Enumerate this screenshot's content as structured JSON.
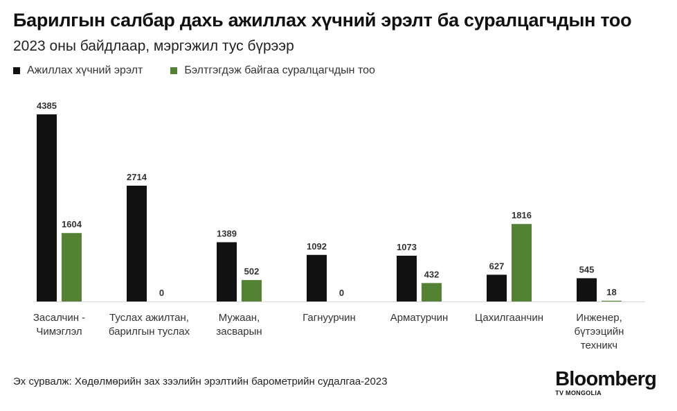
{
  "title": "Барилгын салбар дахь ажиллах хүчний эрэлт ба суралцагчдын тоо",
  "subtitle": "2023 оны байдлаар, мэргэжил тус бүрээр",
  "source": "Эх сурвалж: Хөдөлмөрийн зах зээлийн эрэлтийн барометрийн судалгаа-2023",
  "brand": {
    "name": "Bloomberg",
    "sub": "TV MONGOLIA"
  },
  "colors": {
    "demand": "#111111",
    "students": "#548235",
    "axis": "#d9d9d9"
  },
  "chart_data": {
    "type": "bar",
    "categories": [
      [
        "Засалчин -",
        "Чимэглэл"
      ],
      [
        "Туслах ажилтан,",
        "барилгын туслах"
      ],
      [
        "Мужаан,",
        "засварын"
      ],
      [
        "Гагнуурчин"
      ],
      [
        "Арматурчин"
      ],
      [
        "Цахилгаанчин"
      ],
      [
        "Инженер,",
        "бүтээцийн",
        "техникч"
      ]
    ],
    "series": [
      {
        "name": "Ажиллах хүчний эрэлт",
        "values": [
          4385,
          2714,
          1389,
          1092,
          1073,
          627,
          545
        ]
      },
      {
        "name": "Бэлтгэгдэж байгаа суралцагчдын тоо",
        "values": [
          1604,
          0,
          502,
          0,
          432,
          1816,
          18
        ]
      }
    ],
    "ylim": [
      0,
      4385
    ],
    "grid": false,
    "legend": "top-left",
    "data_labels": true
  }
}
